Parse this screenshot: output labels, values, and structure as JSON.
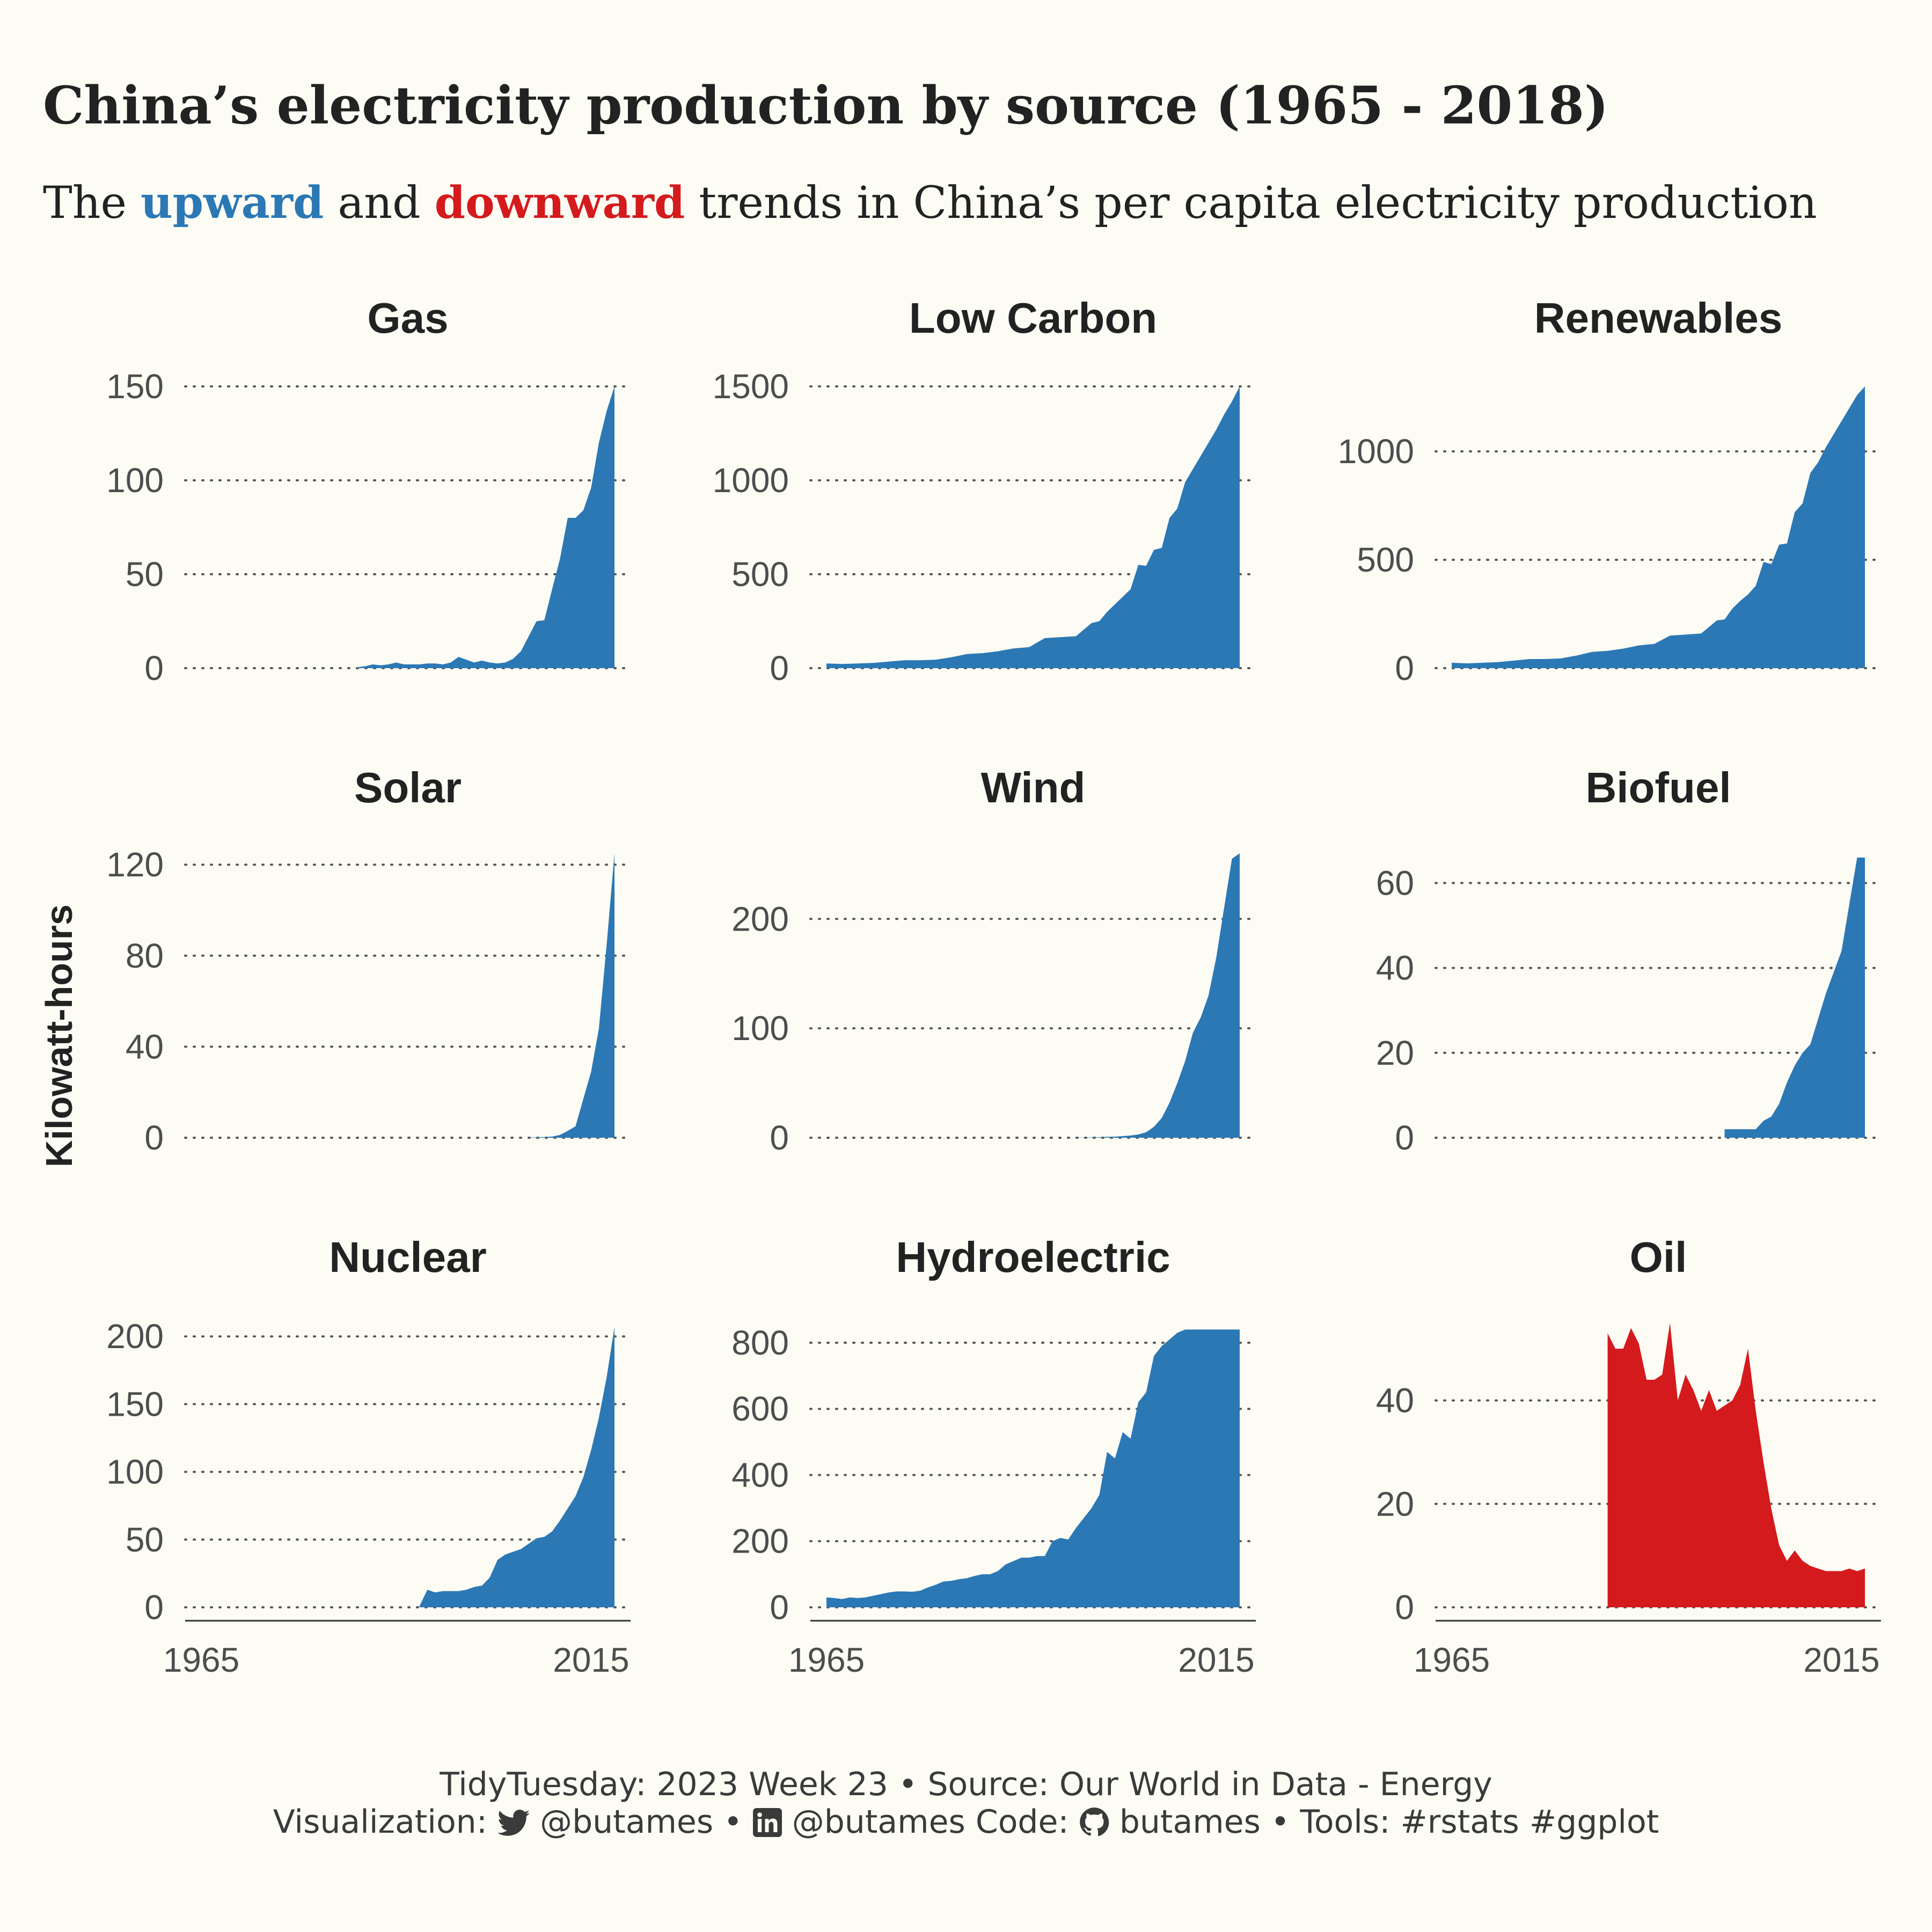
{
  "title": "China’s electricity production by source (1965 - 2018)",
  "subtitle": {
    "pre": "The",
    "up": "upward",
    "mid": "and",
    "down": "downward",
    "post": "trends in China’s per capita electricity production"
  },
  "colors": {
    "upward": "#2b78b5",
    "downward": "#d51a1d"
  },
  "caption": {
    "line1": "TidyTuesday: 2023 Week 23 • Source: Our World in Data - Energy",
    "line2_pre": "Visualization:",
    "twitter_icon": "twitter-icon",
    "twitter_handle": "@butames",
    "sep1": "•",
    "linkedin_icon": "linkedin-icon",
    "linkedin_handle": "@butames",
    "code_label": "Code:",
    "github_icon": "github-icon",
    "github_handle": "butames",
    "sep2": "•",
    "tools": "Tools: #rstats #ggplot"
  },
  "chart_data": {
    "type": "area",
    "ylabel": "Kilowatt-hours",
    "xlim": [
      1965,
      2018
    ],
    "x_ticks": [
      1965,
      2015
    ],
    "x_ticks_shown_on_bottom_row": true,
    "grid": "horizontal dotted",
    "panels": [
      {
        "name": "Gas",
        "trend": "upward",
        "ylim": [
          0,
          150
        ],
        "y_ticks": [
          0,
          50,
          100,
          150
        ],
        "x": [
          1985,
          1986,
          1987,
          1988,
          1989,
          1990,
          1991,
          1992,
          1993,
          1994,
          1995,
          1996,
          1997,
          1998,
          1999,
          2000,
          2001,
          2002,
          2003,
          2004,
          2005,
          2006,
          2007,
          2008,
          2009,
          2010,
          2011,
          2012,
          2013,
          2014,
          2015,
          2016,
          2017,
          2018
        ],
        "y": [
          0.5,
          1,
          2,
          1.5,
          2,
          3,
          2,
          2,
          2,
          2.5,
          2.5,
          2,
          3,
          6,
          4.5,
          3,
          4,
          3,
          2.5,
          3,
          5,
          9,
          17,
          25,
          25.5,
          42,
          58,
          80,
          80,
          84,
          96,
          120,
          137,
          150
        ]
      },
      {
        "name": "Low Carbon",
        "trend": "upward",
        "ylim": [
          0,
          1500
        ],
        "y_ticks": [
          0,
          500,
          1000,
          1500
        ],
        "x": [
          1965,
          1967,
          1969,
          1971,
          1973,
          1975,
          1977,
          1979,
          1981,
          1983,
          1985,
          1987,
          1989,
          1991,
          1993,
          1995,
          1997,
          1999,
          2000,
          2001,
          2002,
          2003,
          2004,
          2005,
          2006,
          2007,
          2008,
          2009,
          2010,
          2011,
          2012,
          2013,
          2014,
          2015,
          2016,
          2017,
          2018
        ],
        "y": [
          25,
          22,
          25,
          28,
          35,
          42,
          42,
          45,
          58,
          75,
          80,
          90,
          105,
          112,
          160,
          165,
          170,
          240,
          250,
          300,
          340,
          380,
          420,
          550,
          545,
          630,
          640,
          800,
          850,
          990,
          1060,
          1130,
          1200,
          1270,
          1350,
          1420,
          1500
        ]
      },
      {
        "name": "Renewables",
        "trend": "upward",
        "ylim": [
          0,
          1300
        ],
        "y_ticks": [
          0,
          500,
          1000
        ],
        "x": [
          1965,
          1967,
          1969,
          1971,
          1973,
          1975,
          1977,
          1979,
          1981,
          1983,
          1985,
          1987,
          1989,
          1991,
          1993,
          1995,
          1997,
          1999,
          2000,
          2001,
          2002,
          2003,
          2004,
          2005,
          2006,
          2007,
          2008,
          2009,
          2010,
          2011,
          2012,
          2013,
          2014,
          2015,
          2016,
          2017,
          2018
        ],
        "y": [
          25,
          22,
          25,
          28,
          35,
          42,
          42,
          45,
          58,
          75,
          80,
          90,
          105,
          112,
          150,
          155,
          160,
          220,
          225,
          275,
          310,
          340,
          380,
          490,
          480,
          570,
          575,
          720,
          760,
          900,
          950,
          1020,
          1080,
          1140,
          1200,
          1260,
          1300
        ]
      },
      {
        "name": "Solar",
        "trend": "upward",
        "ylim": [
          0,
          125
        ],
        "y_ticks": [
          0,
          40,
          80,
          120
        ],
        "x": [
          2007,
          2008,
          2009,
          2010,
          2011,
          2012,
          2013,
          2014,
          2015,
          2016,
          2017,
          2018
        ],
        "y": [
          0.1,
          0.2,
          0.3,
          0.5,
          1.2,
          3,
          5,
          17,
          29,
          48,
          85,
          125
        ]
      },
      {
        "name": "Wind",
        "trend": "upward",
        "ylim": [
          0,
          260
        ],
        "y_ticks": [
          0,
          100,
          200
        ],
        "x": [
          1997,
          1998,
          1999,
          2000,
          2001,
          2002,
          2003,
          2004,
          2005,
          2006,
          2007,
          2008,
          2009,
          2010,
          2011,
          2012,
          2013,
          2014,
          2015,
          2016,
          2017,
          2018
        ],
        "y": [
          0.1,
          0.2,
          0.3,
          0.5,
          0.8,
          1,
          1.5,
          2,
          3,
          5,
          10,
          18,
          32,
          50,
          70,
          96,
          110,
          130,
          165,
          210,
          255,
          260
        ]
      },
      {
        "name": "Biofuel",
        "trend": "upward",
        "ylim": [
          0,
          67
        ],
        "y_ticks": [
          0,
          20,
          40,
          60
        ],
        "x": [
          2000,
          2001,
          2002,
          2003,
          2004,
          2005,
          2006,
          2007,
          2008,
          2009,
          2010,
          2011,
          2012,
          2013,
          2014,
          2015,
          2016,
          2017,
          2018
        ],
        "y": [
          2,
          2,
          2,
          2,
          2,
          4,
          5,
          8,
          13,
          17,
          20,
          22,
          28,
          34,
          39,
          44,
          55,
          66,
          66
        ]
      },
      {
        "name": "Nuclear",
        "trend": "upward",
        "ylim": [
          0,
          210
        ],
        "y_ticks": [
          0,
          50,
          100,
          150,
          200
        ],
        "x": [
          1993,
          1994,
          1995,
          1996,
          1997,
          1998,
          1999,
          2000,
          2001,
          2002,
          2003,
          2004,
          2005,
          2006,
          2007,
          2008,
          2009,
          2010,
          2011,
          2012,
          2013,
          2014,
          2015,
          2016,
          2017,
          2018
        ],
        "y": [
          1,
          13,
          11,
          12,
          12,
          12,
          13,
          15,
          16,
          22,
          35,
          39,
          41,
          43,
          47,
          51,
          52,
          56,
          64,
          73,
          82,
          96,
          116,
          140,
          170,
          207
        ]
      },
      {
        "name": "Hydroelectric",
        "trend": "upward",
        "ylim": [
          0,
          860
        ],
        "y_ticks": [
          0,
          200,
          400,
          600,
          800
        ],
        "x": [
          1965,
          1966,
          1967,
          1968,
          1969,
          1970,
          1971,
          1972,
          1973,
          1974,
          1975,
          1976,
          1977,
          1978,
          1979,
          1980,
          1981,
          1982,
          1983,
          1984,
          1985,
          1986,
          1987,
          1988,
          1989,
          1990,
          1991,
          1992,
          1993,
          1994,
          1995,
          1996,
          1997,
          1998,
          1999,
          2000,
          2001,
          2002,
          2003,
          2004,
          2005,
          2006,
          2007,
          2008,
          2009,
          2010,
          2011,
          2012,
          2013,
          2014,
          2015,
          2016,
          2017,
          2018
        ],
        "y": [
          30,
          28,
          25,
          30,
          28,
          30,
          35,
          40,
          45,
          48,
          48,
          47,
          50,
          60,
          68,
          78,
          80,
          85,
          88,
          95,
          100,
          100,
          110,
          130,
          140,
          150,
          150,
          155,
          155,
          200,
          210,
          205,
          240,
          270,
          300,
          340,
          470,
          450,
          530,
          510,
          620,
          650,
          760,
          790,
          810,
          830,
          840,
          840,
          840,
          840,
          840,
          840,
          840,
          840
        ]
      },
      {
        "name": "Oil",
        "trend": "downward",
        "ylim": [
          0,
          55
        ],
        "y_ticks": [
          0,
          20,
          40
        ],
        "x": [
          1985,
          1986,
          1987,
          1988,
          1989,
          1990,
          1991,
          1992,
          1993,
          1994,
          1995,
          1996,
          1997,
          1998,
          1999,
          2000,
          2001,
          2002,
          2003,
          2004,
          2005,
          2006,
          2007,
          2008,
          2009,
          2010,
          2011,
          2012,
          2013,
          2014,
          2015,
          2016,
          2017,
          2018
        ],
        "y": [
          53,
          50,
          50,
          54,
          51,
          44,
          44,
          45,
          55,
          40,
          45,
          42,
          38,
          42,
          38,
          39,
          40,
          43,
          50,
          38,
          28,
          19,
          12,
          9,
          11,
          9,
          8,
          7.5,
          7,
          7,
          7,
          7.5,
          7,
          7.5
        ]
      }
    ]
  }
}
